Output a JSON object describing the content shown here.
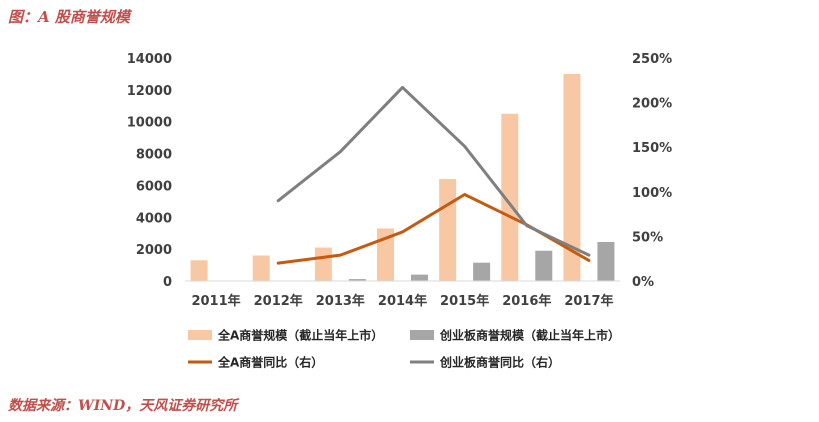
{
  "header": {
    "title": "图：A 股商誉规模"
  },
  "footer": {
    "source": "数据来源：WIND，天风证券研究所"
  },
  "chart_data": {
    "type": "bar",
    "categories": [
      "2011年",
      "2012年",
      "2013年",
      "2014年",
      "2015年",
      "2016年",
      "2017年"
    ],
    "y_left": {
      "min": 0,
      "max": 14000,
      "ticks": [
        0,
        2000,
        4000,
        6000,
        8000,
        10000,
        12000,
        14000
      ]
    },
    "y_right": {
      "min": 0,
      "max": 250,
      "ticks": [
        "0%",
        "50%",
        "100%",
        "150%",
        "200%",
        "250%"
      ],
      "unit": "%"
    },
    "bar_series": [
      {
        "name": "全A商誉规模（截止当年上市）",
        "color": "#f8c7a4",
        "values": [
          1300,
          1600,
          2100,
          3300,
          6400,
          10500,
          13000
        ]
      },
      {
        "name": "创业板商誉规模（截止当年上市）",
        "color": "#a6a6a6",
        "values": [
          null,
          20,
          120,
          400,
          1150,
          1900,
          2450
        ]
      }
    ],
    "line_series": [
      {
        "name": "全A商誉同比（右）",
        "color": "#c55a11",
        "values": [
          null,
          20,
          29,
          55,
          97,
          63,
          23
        ]
      },
      {
        "name": "创业板商誉同比（右）",
        "color": "#7f7f7f",
        "values": [
          null,
          90,
          145,
          217,
          151,
          62,
          29
        ]
      }
    ],
    "legend_position": "bottom",
    "grid": false
  }
}
